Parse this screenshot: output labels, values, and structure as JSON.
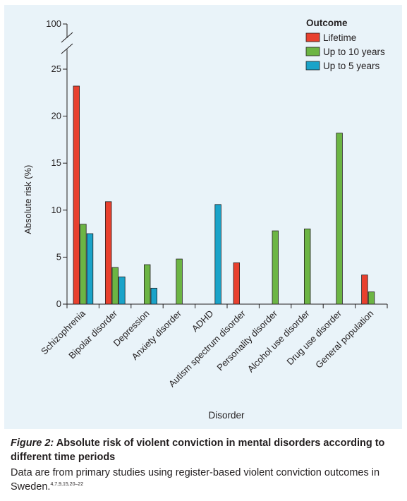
{
  "chart_data": {
    "type": "bar",
    "xlabel": "Disorder",
    "ylabel": "Absolute risk (%)",
    "yticks": [
      0,
      5,
      10,
      15,
      20,
      25
    ],
    "ybreak_label": "100",
    "ylim": [
      0,
      25
    ],
    "axis_break": true,
    "legend_title": "Outcome",
    "legend_position": "top-right",
    "categories": [
      "Schizophrenia",
      "Bipolar disorder",
      "Depression",
      "Anxiety disorder",
      "ADHD",
      "Autism spectrum disorder",
      "Personality disorder",
      "Alcohol use disorder",
      "Drug use disorder",
      "General population"
    ],
    "series": [
      {
        "name": "Lifetime",
        "color": "#e8402e",
        "values": [
          23.2,
          10.9,
          null,
          null,
          null,
          4.4,
          null,
          null,
          null,
          3.1
        ]
      },
      {
        "name": "Up to 10 years",
        "color": "#6cb544",
        "values": [
          8.5,
          3.9,
          4.2,
          4.8,
          null,
          null,
          7.8,
          8.0,
          18.2,
          1.3
        ]
      },
      {
        "name": "Up to 5 years",
        "color": "#1aa3c9",
        "values": [
          7.5,
          2.9,
          1.7,
          null,
          10.6,
          null,
          null,
          null,
          null,
          null
        ]
      }
    ]
  },
  "caption": {
    "label": "Figure 2:",
    "title": " Absolute risk of violent conviction in mental disorders according to different time periods",
    "body": "Data are from primary studies using register-based violent conviction outcomes in Sweden.",
    "refs": "4,7,9,15,20–22"
  }
}
